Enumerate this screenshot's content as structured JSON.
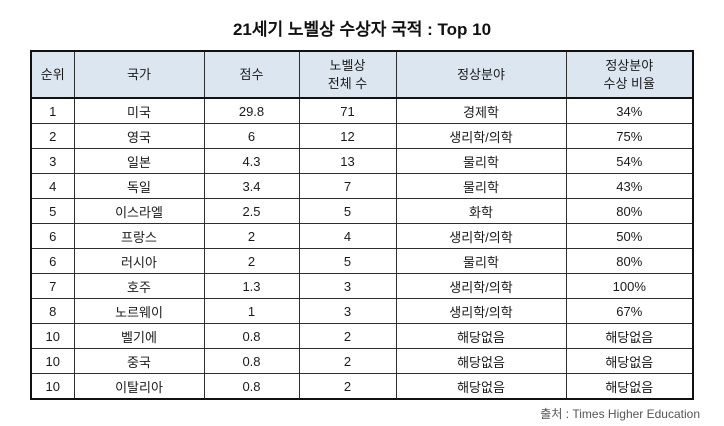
{
  "title": "21세기 노벨상 수상자 국적 : Top 10",
  "source_note": "출처 : Times Higher Education",
  "styles": {
    "header_bg": "#dce6f1",
    "outer_border": "#111111",
    "inner_border": "#2e2e2e",
    "source_color": "#555555"
  },
  "table": {
    "header_display": [
      "순위",
      "국가",
      "점수",
      "노벨상\n전체 수",
      "정상분야",
      "정상분야\n수상 비율"
    ]
  },
  "chart_data": {
    "type": "table",
    "title": "21세기 노벨상 수상자 국적 : Top 10",
    "columns": [
      "순위",
      "국가",
      "점수",
      "노벨상 전체 수",
      "정상분야",
      "정상분야 수상 비율"
    ],
    "rows": [
      [
        "1",
        "미국",
        "29.8",
        "71",
        "경제학",
        "34%"
      ],
      [
        "2",
        "영국",
        "6",
        "12",
        "생리학/의학",
        "75%"
      ],
      [
        "3",
        "일본",
        "4.3",
        "13",
        "물리학",
        "54%"
      ],
      [
        "4",
        "독일",
        "3.4",
        "7",
        "물리학",
        "43%"
      ],
      [
        "5",
        "이스라엘",
        "2.5",
        "5",
        "화학",
        "80%"
      ],
      [
        "6",
        "프랑스",
        "2",
        "4",
        "생리학/의학",
        "50%"
      ],
      [
        "6",
        "러시아",
        "2",
        "5",
        "물리학",
        "80%"
      ],
      [
        "7",
        "호주",
        "1.3",
        "3",
        "생리학/의학",
        "100%"
      ],
      [
        "8",
        "노르웨이",
        "1",
        "3",
        "생리학/의학",
        "67%"
      ],
      [
        "10",
        "벨기에",
        "0.8",
        "2",
        "해당없음",
        "해당없음"
      ],
      [
        "10",
        "중국",
        "0.8",
        "2",
        "해당없음",
        "해당없음"
      ],
      [
        "10",
        "이탈리아",
        "0.8",
        "2",
        "해당없음",
        "해당없음"
      ]
    ],
    "scores_numeric": [
      29.8,
      6,
      4.3,
      3.4,
      2.5,
      2,
      2,
      1.3,
      1,
      0.8,
      0.8,
      0.8
    ],
    "total_prizes_numeric": [
      71,
      12,
      13,
      7,
      5,
      4,
      5,
      3,
      3,
      2,
      2,
      2
    ],
    "source": "출처 : Times Higher Education",
    "legend_position": "none",
    "grid": "table-borders"
  }
}
